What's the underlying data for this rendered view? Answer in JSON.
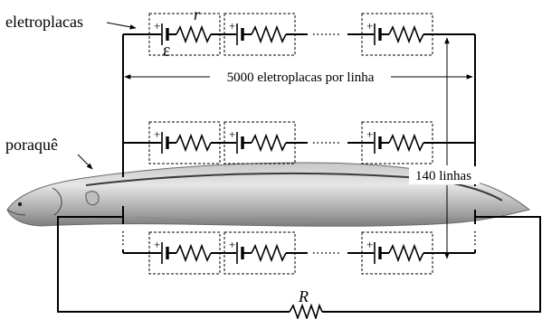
{
  "labels": {
    "electroplates": "eletroplacas",
    "eel": "poraquê",
    "per_row": "5000 eletroplacas por linha",
    "rows": "140 linhas",
    "r_internal": "r",
    "emf": "ε",
    "r_external": "R",
    "plus": "+"
  }
}
